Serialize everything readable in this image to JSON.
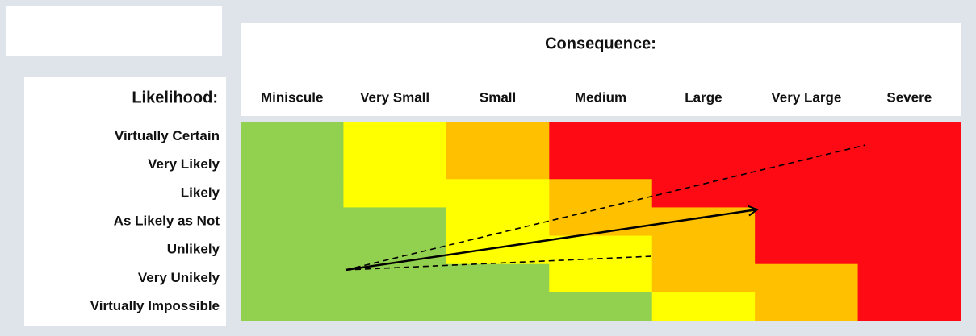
{
  "header": {
    "title": "Consequence:",
    "row_header": "Likelihood:"
  },
  "columns": [
    "Miniscule",
    "Very Small",
    "Small",
    "Medium",
    "Large",
    "Very Large",
    "Severe"
  ],
  "rows": [
    "Virtually Certain",
    "Very Likely",
    "Likely",
    "As Likely as Not",
    "Unlikely",
    "Very Unikely",
    "Virtually Impossible"
  ]
}
